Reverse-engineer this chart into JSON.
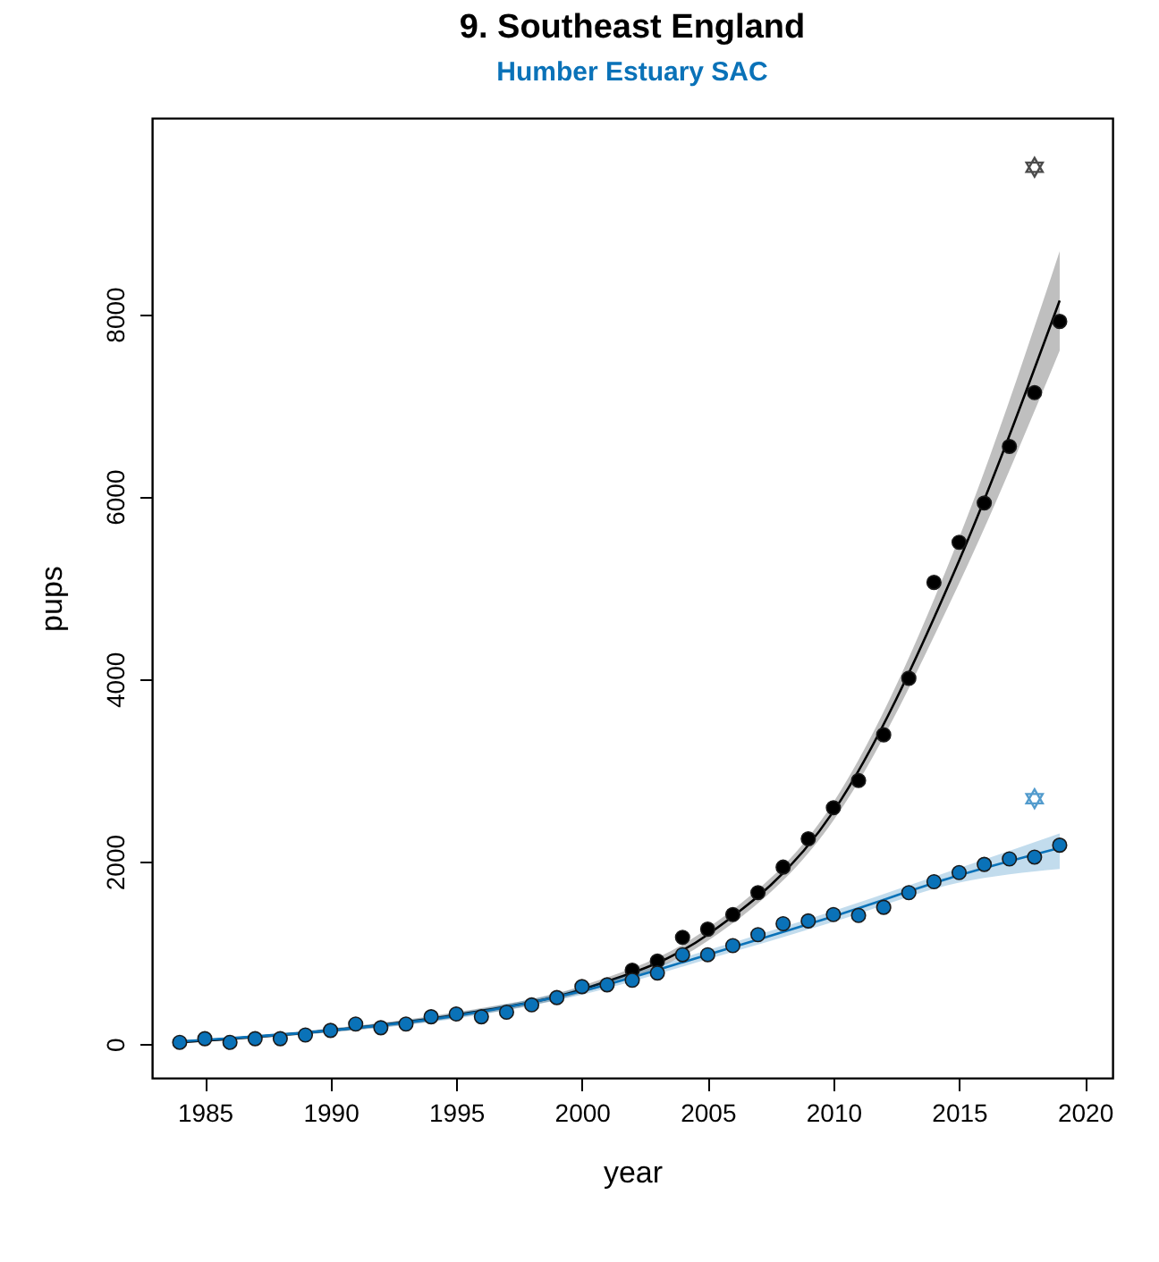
{
  "chart_data": {
    "type": "scatter",
    "title": "9. Southeast England",
    "subtitle": "Humber Estuary SAC",
    "xlabel": "year",
    "ylabel": "pups",
    "xlim": [
      1982.9,
      2021.1
    ],
    "xticks": [
      1985,
      1990,
      1995,
      2000,
      2005,
      2010,
      2015,
      2020
    ],
    "ylim": [
      -370,
      10150
    ],
    "yticks": [
      0,
      2000,
      4000,
      6000,
      8000
    ],
    "grid": false,
    "marker": "circle",
    "series": [
      {
        "type": "line",
        "marker": "none",
        "color": "#000000",
        "x": [
          1984,
          1990,
          1995,
          2000,
          2005,
          2010,
          2015,
          2019
        ],
        "values": [
          20,
          150,
          320,
          600,
          1200,
          2550,
          5300,
          8150
        ],
        "lower": [
          10,
          130,
          290,
          560,
          1130,
          2450,
          5050,
          7600
        ],
        "upper": [
          30,
          170,
          350,
          640,
          1270,
          2650,
          5550,
          8690
        ]
      },
      {
        "type": "line",
        "marker": "none",
        "color": "#0a72b8",
        "x": [
          1984,
          1990,
          1995,
          2000,
          2005,
          2010,
          2015,
          2019
        ],
        "values": [
          30,
          150,
          310,
          580,
          980,
          1400,
          1850,
          2150
        ],
        "lower": [
          20,
          130,
          280,
          540,
          930,
          1340,
          1770,
          1920
        ],
        "upper": [
          40,
          170,
          340,
          620,
          1030,
          1460,
          1930,
          2310
        ]
      },
      {
        "color": "#000000",
        "x": [
          2002,
          2003,
          2004,
          2005,
          2006,
          2007,
          2008,
          2009,
          2010,
          2011,
          2012,
          2013,
          2014,
          2015,
          2016,
          2017,
          2018,
          2019
        ],
        "values": [
          810,
          910,
          1170,
          1260,
          1420,
          1660,
          1940,
          2250,
          2590,
          2890,
          3390,
          4010,
          5060,
          5500,
          5930,
          6550,
          7140,
          7920
        ]
      },
      {
        "color": "#0a72b8",
        "x": [
          1984,
          1985,
          1986,
          1987,
          1988,
          1989,
          1990,
          1991,
          1992,
          1993,
          1994,
          1995,
          1996,
          1997,
          1998,
          1999,
          2000,
          2001,
          2002,
          2003,
          2004,
          2005,
          2006,
          2007,
          2008,
          2009,
          2010,
          2011,
          2012,
          2013,
          2014,
          2015,
          2016,
          2017,
          2018,
          2019
        ],
        "values": [
          20,
          60,
          20,
          60,
          60,
          100,
          150,
          220,
          180,
          220,
          300,
          330,
          300,
          350,
          430,
          510,
          630,
          650,
          700,
          780,
          980,
          980,
          1080,
          1200,
          1320,
          1350,
          1420,
          1410,
          1500,
          1660,
          1780,
          1880,
          1970,
          2030,
          2050,
          2180
        ]
      },
      {
        "color": "#000000",
        "marker": "star",
        "x": [
          2018
        ],
        "values": [
          9610
        ]
      },
      {
        "color": "#0a72b8",
        "marker": "star",
        "x": [
          2018
        ],
        "values": [
          2690
        ]
      }
    ]
  }
}
